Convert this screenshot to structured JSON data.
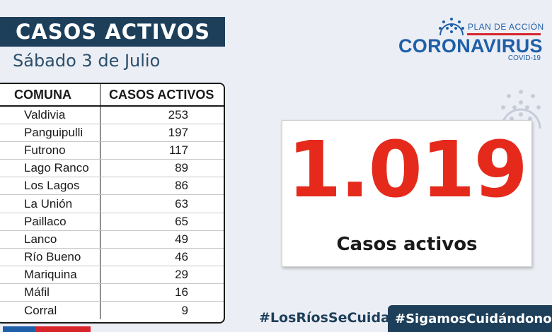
{
  "header": {
    "title": "CASOS ACTIVOS",
    "date": "Sábado 3 de Julio"
  },
  "logo": {
    "plan": "PLAN DE ACCIÓN",
    "name": "CORONAVIRUS",
    "sub": "COVID-19",
    "icon": "virus-icon",
    "colors": {
      "blue": "#1f5fa8",
      "red": "#d8252b"
    }
  },
  "table": {
    "headers": [
      "COMUNA",
      "CASOS ACTIVOS"
    ],
    "rows": [
      {
        "comuna": "Valdivia",
        "casos": "253"
      },
      {
        "comuna": "Panguipulli",
        "casos": "197"
      },
      {
        "comuna": "Futrono",
        "casos": "117"
      },
      {
        "comuna": "Lago Ranco",
        "casos": "89"
      },
      {
        "comuna": "Los Lagos",
        "casos": "86"
      },
      {
        "comuna": "La Unión",
        "casos": "63"
      },
      {
        "comuna": "Paillaco",
        "casos": "65"
      },
      {
        "comuna": "Lanco",
        "casos": "49"
      },
      {
        "comuna": "Río Bueno",
        "casos": "46"
      },
      {
        "comuna": "Mariquina",
        "casos": "29"
      },
      {
        "comuna": "Máfil",
        "casos": "16"
      },
      {
        "comuna": "Corral",
        "casos": "9"
      }
    ]
  },
  "total": {
    "value": "1.019",
    "label": "Casos activos",
    "color": "#e52a1c"
  },
  "hashtags": {
    "first": "#LosRíosSeCuida",
    "second": "#SigamosCuidándonos"
  },
  "theme": {
    "navy": "#1d3f5a",
    "background": "#eceef5"
  }
}
